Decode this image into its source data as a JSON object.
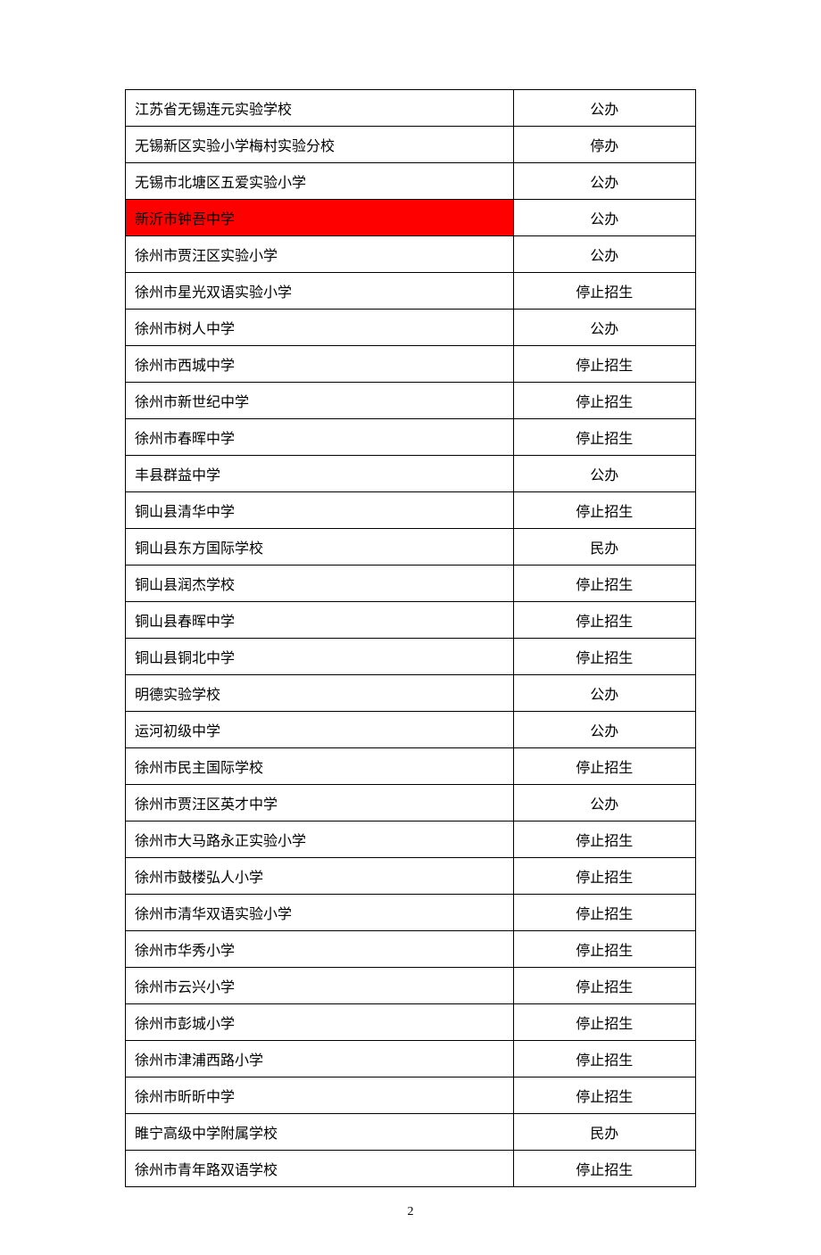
{
  "table": {
    "columns": [
      "name",
      "status"
    ],
    "column_widths": [
      "68%",
      "32%"
    ],
    "border_color": "#000000",
    "highlight_color": "#ff0000",
    "font_size": 16,
    "rows": [
      {
        "name": "江苏省无锡连元实验学校",
        "status": "公办",
        "highlight": false
      },
      {
        "name": "无锡新区实验小学梅村实验分校",
        "status": "停办",
        "highlight": false
      },
      {
        "name": "无锡市北塘区五爱实验小学",
        "status": "公办",
        "highlight": false
      },
      {
        "name": "新沂市钟吾中学",
        "status": "公办",
        "highlight": true
      },
      {
        "name": "徐州市贾汪区实验小学",
        "status": "公办",
        "highlight": false
      },
      {
        "name": "徐州市星光双语实验小学",
        "status": "停止招生",
        "highlight": false
      },
      {
        "name": "徐州市树人中学",
        "status": "公办",
        "highlight": false
      },
      {
        "name": "徐州市西城中学",
        "status": "停止招生",
        "highlight": false
      },
      {
        "name": "徐州市新世纪中学",
        "status": "停止招生",
        "highlight": false
      },
      {
        "name": "徐州市春晖中学",
        "status": "停止招生",
        "highlight": false
      },
      {
        "name": "丰县群益中学",
        "status": "公办",
        "highlight": false
      },
      {
        "name": "铜山县清华中学",
        "status": "停止招生",
        "highlight": false
      },
      {
        "name": "铜山县东方国际学校",
        "status": "民办",
        "highlight": false
      },
      {
        "name": "铜山县润杰学校",
        "status": "停止招生",
        "highlight": false
      },
      {
        "name": "铜山县春晖中学",
        "status": "停止招生",
        "highlight": false
      },
      {
        "name": "铜山县铜北中学",
        "status": "停止招生",
        "highlight": false
      },
      {
        "name": "明德实验学校",
        "status": "公办",
        "highlight": false
      },
      {
        "name": "运河初级中学",
        "status": "公办",
        "highlight": false
      },
      {
        "name": "徐州市民主国际学校",
        "status": "停止招生",
        "highlight": false
      },
      {
        "name": "徐州市贾汪区英才中学",
        "status": "公办",
        "highlight": false
      },
      {
        "name": "徐州市大马路永正实验小学",
        "status": "停止招生",
        "highlight": false
      },
      {
        "name": "徐州市鼓楼弘人小学",
        "status": "停止招生",
        "highlight": false
      },
      {
        "name": "徐州市清华双语实验小学",
        "status": "停止招生",
        "highlight": false
      },
      {
        "name": "徐州市华秀小学",
        "status": "停止招生",
        "highlight": false
      },
      {
        "name": "徐州市云兴小学",
        "status": "停止招生",
        "highlight": false
      },
      {
        "name": "徐州市彭城小学",
        "status": "停止招生",
        "highlight": false
      },
      {
        "name": "徐州市津浦西路小学",
        "status": "停止招生",
        "highlight": false
      },
      {
        "name": "徐州市昕昕中学",
        "status": "停止招生",
        "highlight": false
      },
      {
        "name": "睢宁高级中学附属学校",
        "status": "民办",
        "highlight": false
      },
      {
        "name": "徐州市青年路双语学校",
        "status": "停止招生",
        "highlight": false
      }
    ]
  },
  "page_number": "2"
}
